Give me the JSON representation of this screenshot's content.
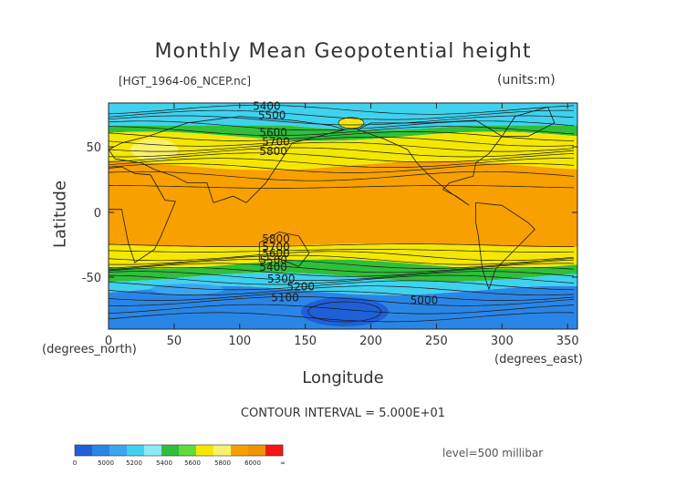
{
  "chart_data": {
    "type": "heatmap",
    "title": "Monthly Mean Geopotential height",
    "file_label": "[HGT_1964-06_NCEP.nc]",
    "units_label": "(units:m)",
    "xlabel": "Longitude",
    "xlabel_unit": "(degrees_east)",
    "ylabel": "Latitude",
    "ylabel_unit": "(degrees_north)",
    "xlim": [
      0,
      357.5
    ],
    "ylim": [
      -90,
      90
    ],
    "x_ticks": [
      0,
      50,
      100,
      150,
      200,
      250,
      300,
      350
    ],
    "y_ticks": [
      50,
      0,
      -50
    ],
    "contour_interval_text": "CONTOUR INTERVAL = 5.000E+01",
    "level_text": "level=500 millibar",
    "contour_labels": [
      "5400",
      "5500",
      "5600",
      "5700",
      "5800",
      "5800",
      "5700",
      "5600",
      "5500",
      "5400",
      "5300",
      "5200",
      "5100",
      "5000"
    ],
    "colorbar": {
      "tick_labels": [
        "0",
        "5000",
        "5200",
        "5400",
        "5600",
        "5800",
        "6000",
        "∞"
      ],
      "colors": [
        "#1f5fd8",
        "#2a86e6",
        "#3aa6f0",
        "#3fd2ee",
        "#8ee8f2",
        "#2fbf3a",
        "#5edc3c",
        "#f5e800",
        "#f8f26a",
        "#f7a000",
        "#f19400",
        "#f51515"
      ]
    },
    "bands": [
      {
        "lat": [
          68,
          85
        ],
        "color": "#3fd2ee",
        "range": "< 5400"
      },
      {
        "lat": [
          60,
          68
        ],
        "color": "#2fbf3a",
        "range": "5400-5600"
      },
      {
        "lat": [
          38,
          60
        ],
        "color": "#f5e800",
        "range": "5600-5800"
      },
      {
        "lat": [
          -22,
          38
        ],
        "color": "#f7a000",
        "range": "5800-5900"
      },
      {
        "lat": [
          -36,
          -22
        ],
        "color": "#f5e800",
        "range": "5600-5800"
      },
      {
        "lat": [
          -46,
          -36
        ],
        "color": "#2fbf3a",
        "range": "5400-5600"
      },
      {
        "lat": [
          -56,
          -46
        ],
        "color": "#3fd2ee",
        "range": "5200-5400"
      },
      {
        "lat": [
          -90,
          -56
        ],
        "color": "#2a86e6",
        "range": "5000-5200"
      }
    ]
  }
}
